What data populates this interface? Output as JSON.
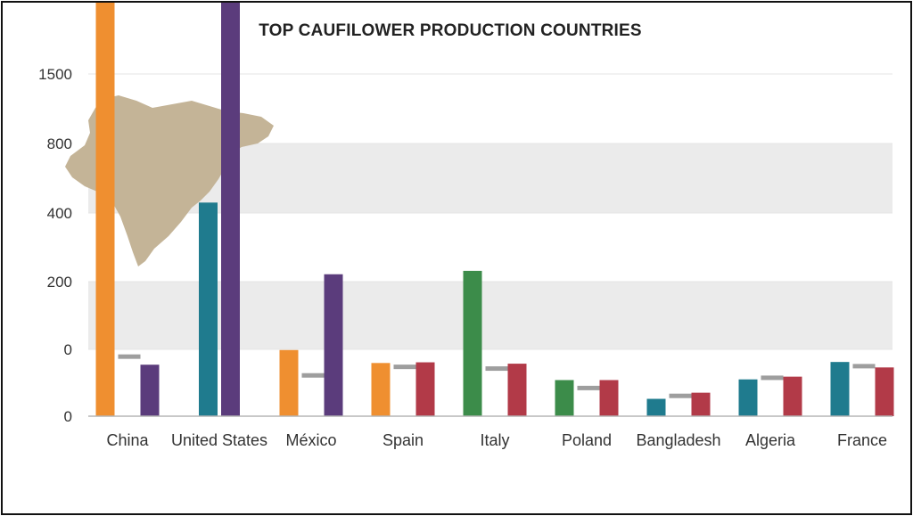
{
  "chart_data": {
    "type": "bar",
    "title": "TOP CAUFILOWER PRODUCTION COUNTRIES",
    "xlabel": "",
    "ylabel": "",
    "y_ticks": [
      "0",
      "0",
      "200",
      "400",
      "800",
      "1500"
    ],
    "categories": [
      "China",
      "United States",
      "México",
      "Spain",
      "Italy",
      "Poland",
      "Bangladesh",
      "Algeria",
      "France"
    ],
    "bands": [
      {
        "from": "400",
        "to": "800",
        "color": "#ebebeb"
      },
      {
        "from": "0",
        "to": "200",
        "color": "#ebebeb"
      }
    ],
    "map_fill": "#c4b497",
    "bars": [
      [
        {
          "value": 1400,
          "color": "#ef8f30"
        },
        {
          "value": -20,
          "color": "#9e9e9e",
          "kind": "marker"
        },
        {
          "value": -45,
          "color": "#5b3c7c"
        }
      ],
      [
        {
          "value": 430,
          "color": "#1f7b8e"
        },
        {
          "value": 1280,
          "color": "#5b3c7c"
        }
      ],
      [
        {
          "value": -2,
          "color": "#ef8f30"
        },
        {
          "value": -75,
          "color": "#9e9e9e",
          "kind": "marker"
        },
        {
          "value": 220,
          "color": "#5b3c7c"
        }
      ],
      [
        {
          "value": -40,
          "color": "#ef8f30"
        },
        {
          "value": -50,
          "color": "#9e9e9e",
          "kind": "marker"
        },
        {
          "value": -38,
          "color": "#b23a48"
        }
      ],
      [
        {
          "value": 230,
          "color": "#3c8c4a"
        },
        {
          "value": -55,
          "color": "#9e9e9e",
          "kind": "marker"
        },
        {
          "value": -42,
          "color": "#b23a48"
        }
      ],
      [
        {
          "value": -90,
          "color": "#3c8c4a"
        },
        {
          "value": -112,
          "color": "#9e9e9e",
          "kind": "marker"
        },
        {
          "value": -90,
          "color": "#b23a48"
        }
      ],
      [
        {
          "value": -145,
          "color": "#1f7b8e"
        },
        {
          "value": -135,
          "color": "#9e9e9e",
          "kind": "marker"
        },
        {
          "value": -127,
          "color": "#b23a48"
        }
      ],
      [
        {
          "value": -88,
          "color": "#1f7b8e"
        },
        {
          "value": -82,
          "color": "#9e9e9e",
          "kind": "marker"
        },
        {
          "value": -80,
          "color": "#b23a48"
        }
      ],
      [
        {
          "value": -37,
          "color": "#1f7b8e"
        },
        {
          "value": -48,
          "color": "#9e9e9e",
          "kind": "marker"
        },
        {
          "value": -53,
          "color": "#b23a48"
        }
      ]
    ]
  }
}
